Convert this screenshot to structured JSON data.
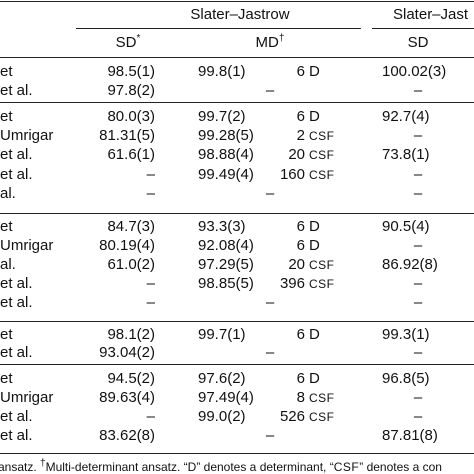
{
  "header": {
    "group1": "Slater–Jastrow",
    "group2": "Slater–Jast",
    "col_sd": "SD",
    "col_sd_mark": "*",
    "col_md": "MD",
    "col_md_mark": "†",
    "col_sd2": "SD"
  },
  "rows": [
    {
      "label": "et",
      "sd": "98.5(1)",
      "md": "99.8(1)",
      "n": "6",
      "u": "D",
      "sd2": "100.02(3)"
    },
    {
      "label": "et al.",
      "sd": "97.8(2)",
      "md": "–",
      "n": "",
      "u": "",
      "sd2": "–"
    },
    {
      "label": "et",
      "sd": "80.0(3)",
      "md": "99.7(2)",
      "n": "6",
      "u": "D",
      "sd2": "92.7(4)"
    },
    {
      "label": "Umrigar",
      "sd": "81.31(5)",
      "md": "99.28(5)",
      "n": "2",
      "u": "CSF",
      "sd2": "–"
    },
    {
      "label": "et al.",
      "sd": "61.6(1)",
      "md": "98.88(4)",
      "n": "20",
      "u": "CSF",
      "sd2": "73.8(1)"
    },
    {
      "label": "et al.",
      "sd": "–",
      "md": "99.49(4)",
      "n": "160",
      "u": "CSF",
      "sd2": "–"
    },
    {
      "label": "al.",
      "sd": "–",
      "md": "–",
      "n": "",
      "u": "",
      "sd2": "–"
    },
    {
      "label": "et",
      "sd": "84.7(3)",
      "md": "93.3(3)",
      "n": "6",
      "u": "D",
      "sd2": "90.5(4)"
    },
    {
      "label": "Umrigar",
      "sd": "80.19(4)",
      "md": "92.08(4)",
      "n": "6",
      "u": "D",
      "sd2": "–"
    },
    {
      "label": "al.",
      "sd": "61.0(2)",
      "md": "97.29(5)",
      "n": "20",
      "u": "CSF",
      "sd2": "86.92(8)"
    },
    {
      "label": "et al.",
      "sd": "–",
      "md": "98.85(5)",
      "n": "396",
      "u": "CSF",
      "sd2": "–"
    },
    {
      "label": "et al.",
      "sd": "–",
      "md": "–",
      "n": "",
      "u": "",
      "sd2": "–"
    },
    {
      "label": "et",
      "sd": "98.1(2)",
      "md": "99.7(1)",
      "n": "6",
      "u": "D",
      "sd2": "99.3(1)"
    },
    {
      "label": "et al.",
      "sd": "93.04(2)",
      "md": "–",
      "n": "",
      "u": "",
      "sd2": "–"
    },
    {
      "label": "et",
      "sd": "94.5(2)",
      "md": "97.6(2)",
      "n": "6",
      "u": "D",
      "sd2": "96.8(5)"
    },
    {
      "label": "Umrigar",
      "sd": "89.63(4)",
      "md": "97.49(4)",
      "n": "8",
      "u": "CSF",
      "sd2": "–"
    },
    {
      "label": "et al.",
      "sd": "–",
      "md": "99.0(2)",
      "n": "526",
      "u": "CSF",
      "sd2": "–"
    },
    {
      "label": "et al.",
      "sd": "83.62(8)",
      "md": "–",
      "n": "",
      "u": "",
      "sd2": "87.81(8)"
    }
  ],
  "footnote": {
    "part1": "ansatz. ",
    "mark": "†",
    "part2": "Multi-determinant ansatz. “D” denotes a determinant, “",
    "csf": "CSF",
    "part3": "” denotes a con"
  }
}
